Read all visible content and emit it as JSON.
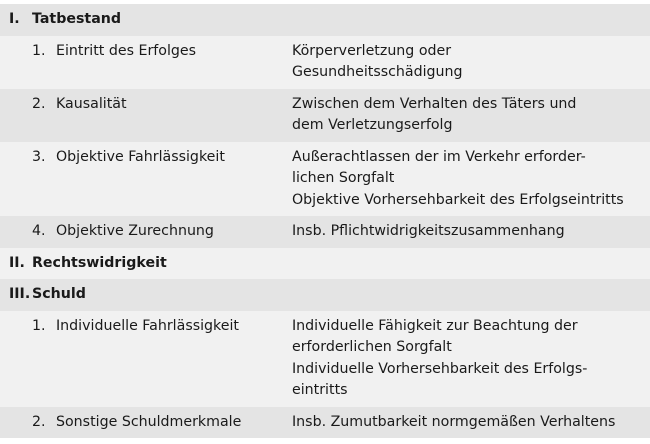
{
  "sections": [
    {
      "numeral": "I.",
      "title": "Tatbestand",
      "items": [
        {
          "num": "1.",
          "label": "Eintritt des Erfolges",
          "desc": [
            "Körperverletzung oder",
            "Gesundheitsschädigung"
          ]
        },
        {
          "num": "2.",
          "label": "Kausalität",
          "desc": [
            "Zwischen dem Verhalten des Täters und",
            "dem Verletzungserfolg"
          ]
        },
        {
          "num": "3.",
          "label": "Objektive Fahrlässigkeit",
          "desc": [
            "Außerachtlassen der im Verkehr erforder-",
            "lichen Sorgfalt",
            "Objektive Vorhersehbarkeit des Erfolgseintritts"
          ]
        },
        {
          "num": "4.",
          "label": "Objektive Zurechnung",
          "desc": [
            "Insb. Pflichtwidrigkeitszusammenhang"
          ]
        }
      ]
    },
    {
      "numeral": "II.",
      "title": "Rechtswidrigkeit",
      "items": []
    },
    {
      "numeral": "III.",
      "title": "Schuld",
      "items": [
        {
          "num": "1.",
          "label": "Individuelle Fahrlässigkeit",
          "desc": [
            "Individuelle Fähigkeit zur Beachtung der",
            "erforderlichen Sorgfalt",
            "Individuelle Vorhersehbarkeit des Erfolgs-",
            "eintritts"
          ]
        },
        {
          "num": "2.",
          "label": "Sonstige Schuldmerkmale",
          "desc": [
            "Insb. Zumutbarkeit normgemäßen Verhaltens"
          ]
        }
      ]
    }
  ],
  "colors": {
    "row_dark": "#e4e4e4",
    "row_light": "#f1f1f1"
  }
}
